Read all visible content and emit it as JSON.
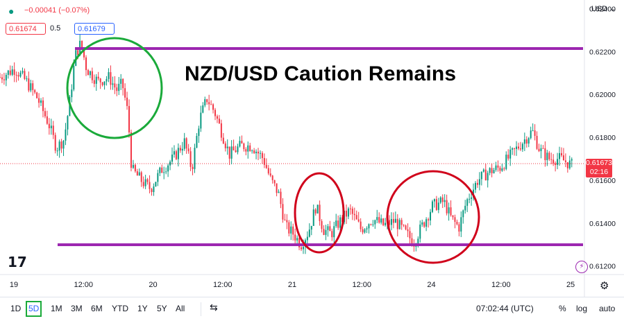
{
  "header": {
    "change": "−0.00041 (−0.07%)",
    "bid": "0.61674",
    "spread": "0.5",
    "ask": "0.61679",
    "currency": "USD"
  },
  "headline": "NZD/USD Caution Remains",
  "price_tag": {
    "price": "0.61673",
    "countdown": "02:16"
  },
  "toolbar": {
    "ranges": [
      "1D",
      "5D",
      "1M",
      "3M",
      "6M",
      "YTD",
      "1Y",
      "5Y",
      "All"
    ],
    "active_range": "5D",
    "time": "07:02:44 (UTC)",
    "percent": "%",
    "log": "log",
    "auto": "auto"
  },
  "colors": {
    "up": "#089981",
    "down": "#f23645",
    "line": "#9c27b0",
    "green_circle": "#1aaa3a",
    "red_circle": "#d0021b"
  },
  "chart_data": {
    "type": "candlestick",
    "y_ticks": [
      "0.62400",
      "0.62200",
      "0.62000",
      "0.61800",
      "0.61600",
      "0.61400",
      "0.61200"
    ],
    "x_ticks": [
      "19",
      "12:00",
      "20",
      "12:00",
      "21",
      "12:00",
      "24",
      "12:00",
      "25"
    ],
    "ylim": [
      0.6116,
      0.6244
    ],
    "current_price": 0.61673,
    "support": 0.61252,
    "resistance": 0.62265,
    "series": [
      {
        "x": 0,
        "y": 0.6208
      },
      {
        "x": 0.4,
        "y": 0.6212
      },
      {
        "x": 0.7,
        "y": 0.6206
      },
      {
        "x": 1.0,
        "y": 0.6198
      },
      {
        "x": 1.3,
        "y": 0.6186
      },
      {
        "x": 1.5,
        "y": 0.6175
      },
      {
        "x": 1.7,
        "y": 0.6179
      },
      {
        "x": 1.85,
        "y": 0.6196
      },
      {
        "x": 2.0,
        "y": 0.6218
      },
      {
        "x": 2.15,
        "y": 0.6224
      },
      {
        "x": 2.3,
        "y": 0.6212
      },
      {
        "x": 2.6,
        "y": 0.6206
      },
      {
        "x": 2.9,
        "y": 0.6208
      },
      {
        "x": 3.1,
        "y": 0.6202
      },
      {
        "x": 3.25,
        "y": 0.6205
      },
      {
        "x": 3.4,
        "y": 0.6191
      },
      {
        "x": 3.5,
        "y": 0.6165
      },
      {
        "x": 3.8,
        "y": 0.6159
      },
      {
        "x": 4.0,
        "y": 0.6156
      },
      {
        "x": 4.3,
        "y": 0.6165
      },
      {
        "x": 4.6,
        "y": 0.617
      },
      {
        "x": 4.9,
        "y": 0.6178
      },
      {
        "x": 5.1,
        "y": 0.6165
      },
      {
        "x": 5.3,
        "y": 0.6188
      },
      {
        "x": 5.5,
        "y": 0.6198
      },
      {
        "x": 5.7,
        "y": 0.6192
      },
      {
        "x": 5.9,
        "y": 0.6182
      },
      {
        "x": 6.1,
        "y": 0.6172
      },
      {
        "x": 6.4,
        "y": 0.6176
      },
      {
        "x": 6.7,
        "y": 0.6176
      },
      {
        "x": 7.0,
        "y": 0.617
      },
      {
        "x": 7.2,
        "y": 0.616
      },
      {
        "x": 7.4,
        "y": 0.6154
      },
      {
        "x": 7.6,
        "y": 0.6138
      },
      {
        "x": 7.8,
        "y": 0.6135
      },
      {
        "x": 8.0,
        "y": 0.613
      },
      {
        "x": 8.2,
        "y": 0.6136
      },
      {
        "x": 8.4,
        "y": 0.6148
      },
      {
        "x": 8.6,
        "y": 0.6137
      },
      {
        "x": 8.8,
        "y": 0.6135
      },
      {
        "x": 9.0,
        "y": 0.614
      },
      {
        "x": 9.3,
        "y": 0.6146
      },
      {
        "x": 9.6,
        "y": 0.6137
      },
      {
        "x": 9.9,
        "y": 0.6142
      },
      {
        "x": 10.2,
        "y": 0.6139
      },
      {
        "x": 10.5,
        "y": 0.6141
      },
      {
        "x": 10.8,
        "y": 0.6135
      },
      {
        "x": 11.0,
        "y": 0.6131
      },
      {
        "x": 11.2,
        "y": 0.6138
      },
      {
        "x": 11.5,
        "y": 0.6148
      },
      {
        "x": 11.8,
        "y": 0.615
      },
      {
        "x": 12.0,
        "y": 0.6142
      },
      {
        "x": 12.2,
        "y": 0.6138
      },
      {
        "x": 12.4,
        "y": 0.615
      },
      {
        "x": 12.7,
        "y": 0.616
      },
      {
        "x": 13.0,
        "y": 0.6164
      },
      {
        "x": 13.3,
        "y": 0.6166
      },
      {
        "x": 13.6,
        "y": 0.6172
      },
      {
        "x": 13.9,
        "y": 0.6178
      },
      {
        "x": 14.15,
        "y": 0.6183
      },
      {
        "x": 14.35,
        "y": 0.6174
      },
      {
        "x": 14.6,
        "y": 0.617
      },
      {
        "x": 14.9,
        "y": 0.617
      },
      {
        "x": 15.2,
        "y": 0.6167
      }
    ]
  }
}
